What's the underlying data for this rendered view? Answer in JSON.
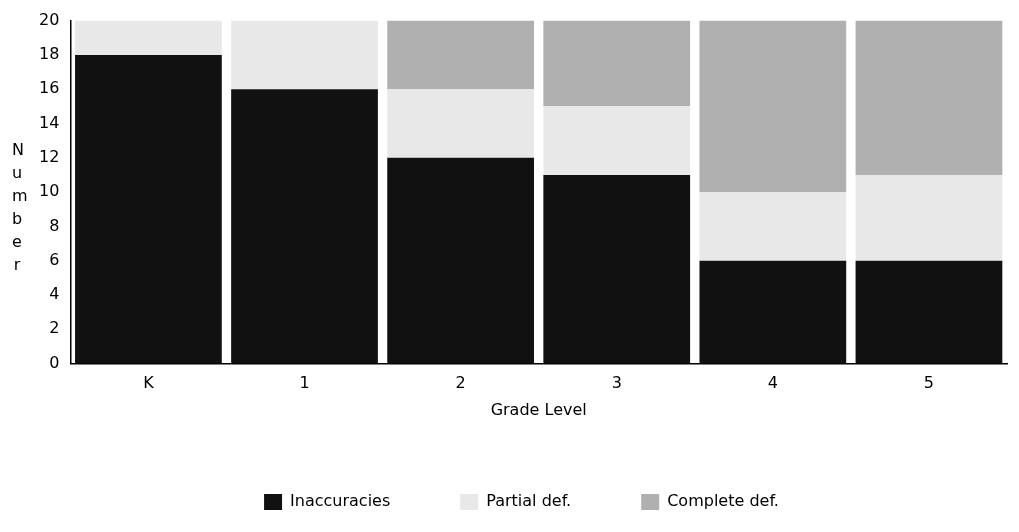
{
  "chart_data": {
    "type": "bar",
    "stacked": true,
    "xlabel": "Grade Level",
    "ylabel": "Number",
    "categories": [
      "K",
      "1",
      "2",
      "3",
      "4",
      "5"
    ],
    "series": [
      {
        "name": "Inaccuracies",
        "color": "#111111",
        "values": [
          18,
          16,
          12,
          11,
          6,
          6
        ]
      },
      {
        "name": "Partial def.",
        "color": "#e8e8e8",
        "values": [
          2,
          4,
          4,
          4,
          4,
          5
        ]
      },
      {
        "name": "Complete def.",
        "color": "#b0b0b0",
        "values": [
          0,
          0,
          4,
          5,
          10,
          9
        ]
      }
    ],
    "ylim": [
      0,
      20
    ],
    "yticks": [
      0,
      2,
      4,
      6,
      8,
      10,
      12,
      14,
      16,
      18,
      20
    ],
    "grid": false,
    "legend": "bottom"
  }
}
